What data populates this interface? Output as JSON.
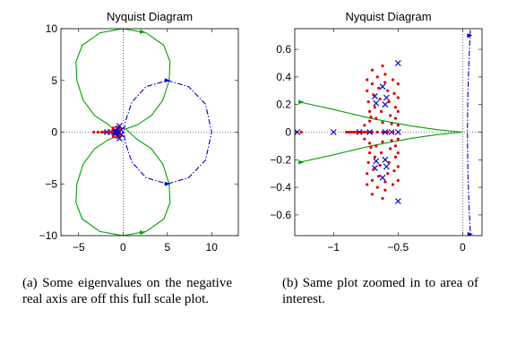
{
  "chart_data": [
    {
      "type": "scatter",
      "title": "Nyquist Diagram",
      "xlim": [
        -7,
        13
      ],
      "ylim": [
        -10,
        10
      ],
      "xticks": [
        -5,
        0,
        5,
        10
      ],
      "yticks": [
        -10,
        -5,
        0,
        5,
        10
      ],
      "grid": "dotted zero lines",
      "series": [
        {
          "style": "solid-green-curve",
          "color": "#00a000",
          "points": [
            [
              0,
              10
            ],
            [
              2.6,
              9.6
            ],
            [
              4.6,
              8.4
            ],
            [
              5.3,
              6.8
            ],
            [
              5.2,
              5
            ],
            [
              4.5,
              3.1
            ],
            [
              3.2,
              1.6
            ],
            [
              1.6,
              0.7
            ],
            [
              0.3,
              0.3
            ],
            [
              1.6,
              -0.7
            ],
            [
              3.2,
              -1.6
            ],
            [
              4.5,
              -3.1
            ],
            [
              5.2,
              -5
            ],
            [
              5.3,
              -6.8
            ],
            [
              4.6,
              -8.4
            ],
            [
              2.6,
              -9.6
            ],
            [
              0,
              -10
            ],
            [
              -2.6,
              -9.6
            ],
            [
              -4.6,
              -8.4
            ],
            [
              -5.3,
              -6.8
            ],
            [
              -5.2,
              -5
            ],
            [
              -4.5,
              -3.1
            ],
            [
              -3.2,
              -1.6
            ],
            [
              -1.6,
              -0.7
            ],
            [
              -0.3,
              -0.3
            ],
            [
              -1.6,
              0.7
            ],
            [
              -3.2,
              1.6
            ],
            [
              -4.5,
              3.1
            ],
            [
              -5.2,
              5
            ],
            [
              -5.3,
              6.8
            ],
            [
              -4.6,
              8.4
            ],
            [
              -2.6,
              9.6
            ],
            [
              0,
              10
            ]
          ],
          "arrows": [
            [
              2.2,
              9.7
            ],
            [
              2.2,
              -9.7
            ]
          ]
        },
        {
          "style": "dashdot-blue-curve",
          "color": "#0000cc",
          "points": [
            [
              5,
              5
            ],
            [
              7.4,
              4.4
            ],
            [
              9.3,
              2.7
            ],
            [
              10,
              0
            ],
            [
              9.3,
              -2.7
            ],
            [
              7.4,
              -4.4
            ],
            [
              5,
              -5
            ],
            [
              2.6,
              -4.4
            ],
            [
              1,
              -2.9
            ],
            [
              0.25,
              -1
            ],
            [
              0.1,
              0
            ],
            [
              0.25,
              1
            ],
            [
              1,
              2.9
            ],
            [
              2.6,
              4.4
            ],
            [
              5,
              5
            ]
          ],
          "arrows": [
            [
              5,
              5
            ],
            [
              5,
              -5
            ]
          ]
        },
        {
          "name": "poles",
          "marker": "x",
          "color": "#0000cc",
          "points": [
            [
              -1.8,
              0
            ],
            [
              -1.4,
              0
            ],
            [
              -1.0,
              0
            ],
            [
              -0.8,
              0
            ],
            [
              -0.6,
              0.3
            ],
            [
              -0.6,
              -0.3
            ],
            [
              -0.4,
              0.6
            ],
            [
              -0.4,
              -0.6
            ],
            [
              -0.2,
              0.2
            ],
            [
              -0.2,
              -0.2
            ],
            [
              -0.5,
              0
            ],
            [
              -0.9,
              0.2
            ],
            [
              -0.9,
              -0.2
            ]
          ]
        },
        {
          "name": "eigenvalues",
          "marker": "dot",
          "color": "#e00000",
          "points": [
            [
              -3.3,
              0
            ],
            [
              -2.8,
              0
            ],
            [
              -2.4,
              0
            ],
            [
              -2.1,
              0
            ],
            [
              -1.6,
              0.1
            ],
            [
              -1.2,
              0
            ],
            [
              -1.1,
              0.4
            ],
            [
              -1.1,
              -0.4
            ],
            [
              -0.7,
              0.5
            ],
            [
              -0.7,
              -0.5
            ],
            [
              -0.3,
              0.3
            ],
            [
              -0.3,
              -0.3
            ],
            [
              -1.3,
              0
            ]
          ]
        }
      ]
    },
    {
      "type": "scatter",
      "title": "Nyquist Diagram",
      "xlim": [
        -1.3,
        0.15
      ],
      "ylim": [
        -0.75,
        0.75
      ],
      "xticks": [
        -1,
        -0.5,
        0
      ],
      "xtick_labels": [
        "−1",
        "−0.5",
        "0"
      ],
      "yticks": [
        -0.6,
        -0.4,
        -0.2,
        0,
        0.2,
        0.4,
        0.6
      ],
      "ytick_labels": [
        "−0.6",
        "−0.4",
        "−0.2",
        "0",
        "0.2",
        "0.4",
        "0.6"
      ],
      "grid": "dotted zero lines",
      "series": [
        {
          "style": "solid-green-curve",
          "color": "#00a000",
          "points": [
            [
              -1.27,
              0.22
            ],
            [
              -1.0,
              0.164
            ],
            [
              -0.7,
              0.098
            ],
            [
              -0.4,
              0.045
            ],
            [
              -0.2,
              0.018
            ],
            [
              -0.05,
              0.004
            ],
            [
              0,
              0
            ],
            [
              -0.05,
              -0.004
            ],
            [
              -0.2,
              -0.018
            ],
            [
              -0.4,
              -0.045
            ],
            [
              -0.7,
              -0.098
            ],
            [
              -1.0,
              -0.164
            ],
            [
              -1.27,
              -0.22
            ]
          ],
          "arrows": [
            [
              -1.25,
              0.218
            ],
            [
              -1.25,
              -0.218
            ]
          ]
        },
        {
          "style": "dashdot-blue-curve",
          "color": "#0000cc",
          "points": [
            [
              0.06,
              0.74
            ],
            [
              0.048,
              0.5
            ],
            [
              0.04,
              0.25
            ],
            [
              0.037,
              0
            ],
            [
              0.04,
              -0.25
            ],
            [
              0.048,
              -0.5
            ],
            [
              0.06,
              -0.74
            ]
          ],
          "arrows": [
            [
              0.055,
              0.7
            ],
            [
              0.058,
              -0.74
            ]
          ]
        },
        {
          "name": "poles",
          "marker": "x",
          "color": "#0000cc",
          "points": [
            [
              -1.28,
              0
            ],
            [
              -1.0,
              0
            ],
            [
              -0.8,
              0
            ],
            [
              -0.72,
              0
            ],
            [
              -0.68,
              0.26
            ],
            [
              -0.68,
              -0.26
            ],
            [
              -0.67,
              0.21
            ],
            [
              -0.67,
              -0.21
            ],
            [
              -0.62,
              0.33
            ],
            [
              -0.62,
              -0.33
            ],
            [
              -0.6,
              0
            ],
            [
              -0.6,
              0.2
            ],
            [
              -0.6,
              -0.2
            ],
            [
              -0.59,
              0.25
            ],
            [
              -0.59,
              -0.25
            ],
            [
              -0.55,
              0
            ],
            [
              -0.5,
              0
            ],
            [
              -0.5,
              0.5
            ],
            [
              -0.5,
              -0.5
            ]
          ]
        },
        {
          "name": "eigenvalues",
          "marker": "dot",
          "color": "#e00000",
          "points": [
            [
              -1.25,
              0
            ],
            [
              -0.9,
              0
            ],
            [
              -0.88,
              0
            ],
            [
              -0.86,
              0
            ],
            [
              -0.84,
              0
            ],
            [
              -0.82,
              0
            ],
            [
              -0.8,
              0
            ],
            [
              -0.78,
              0
            ],
            [
              -0.76,
              0
            ],
            [
              -0.74,
              0
            ],
            [
              -0.7,
              0
            ],
            [
              -0.66,
              0
            ],
            [
              -0.62,
              0
            ],
            [
              -0.58,
              0
            ],
            [
              -0.54,
              0
            ],
            [
              -0.74,
              0.38
            ],
            [
              -0.74,
              0.3
            ],
            [
              -0.73,
              0.22
            ],
            [
              -0.72,
              0.15
            ],
            [
              -0.72,
              0.08
            ],
            [
              -0.7,
              0.45
            ],
            [
              -0.7,
              0.35
            ],
            [
              -0.69,
              0.27
            ],
            [
              -0.68,
              0.18
            ],
            [
              -0.67,
              0.1
            ],
            [
              -0.66,
              0.4
            ],
            [
              -0.65,
              0.32
            ],
            [
              -0.64,
              0.24
            ],
            [
              -0.63,
              0.15
            ],
            [
              -0.62,
              0.07
            ],
            [
              -0.62,
              0.48
            ],
            [
              -0.6,
              0.42
            ],
            [
              -0.6,
              0.36
            ],
            [
              -0.58,
              0.3
            ],
            [
              -0.57,
              0.22
            ],
            [
              -0.56,
              0.12
            ],
            [
              -0.55,
              0.06
            ],
            [
              -0.54,
              0.38
            ],
            [
              -0.53,
              0.28
            ],
            [
              -0.52,
              0.18
            ],
            [
              -0.52,
              0.1
            ],
            [
              -0.74,
              -0.38
            ],
            [
              -0.74,
              -0.3
            ],
            [
              -0.73,
              -0.22
            ],
            [
              -0.72,
              -0.15
            ],
            [
              -0.72,
              -0.08
            ],
            [
              -0.7,
              -0.45
            ],
            [
              -0.7,
              -0.35
            ],
            [
              -0.69,
              -0.27
            ],
            [
              -0.68,
              -0.18
            ],
            [
              -0.67,
              -0.1
            ],
            [
              -0.66,
              -0.4
            ],
            [
              -0.65,
              -0.32
            ],
            [
              -0.64,
              -0.24
            ],
            [
              -0.63,
              -0.15
            ],
            [
              -0.62,
              -0.07
            ],
            [
              -0.62,
              -0.48
            ],
            [
              -0.6,
              -0.42
            ],
            [
              -0.6,
              -0.36
            ],
            [
              -0.58,
              -0.3
            ],
            [
              -0.57,
              -0.22
            ],
            [
              -0.56,
              -0.12
            ],
            [
              -0.55,
              -0.06
            ],
            [
              -0.54,
              -0.38
            ],
            [
              -0.53,
              -0.28
            ],
            [
              -0.52,
              -0.18
            ],
            [
              -0.52,
              -0.1
            ],
            [
              -0.76,
              0.05
            ],
            [
              -0.76,
              -0.05
            ],
            [
              -0.5,
              0.05
            ],
            [
              -0.5,
              -0.05
            ],
            [
              -0.5,
              0.15
            ],
            [
              -0.5,
              -0.15
            ],
            [
              -0.5,
              0.25
            ],
            [
              -0.5,
              -0.25
            ],
            [
              -0.5,
              0.35
            ],
            [
              -0.5,
              -0.35
            ],
            [
              -0.71,
              0.11
            ],
            [
              -0.71,
              -0.11
            ]
          ]
        }
      ]
    }
  ],
  "captions": {
    "a": "(a) Some eigenvalues on the negative real axis are off this full scale plot.",
    "b": "(b) Same plot zoomed in to area of interest."
  }
}
